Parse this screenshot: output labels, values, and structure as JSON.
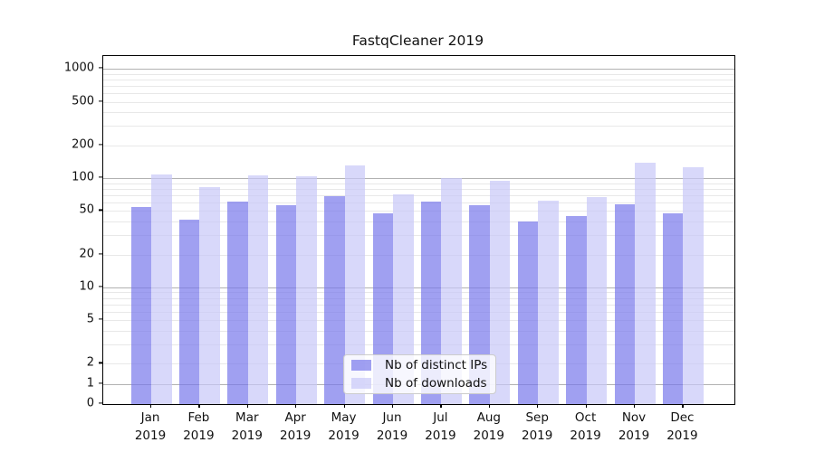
{
  "chart_data": {
    "type": "bar",
    "title": "FastqCleaner 2019",
    "categories": [
      "Jan",
      "Feb",
      "Mar",
      "Apr",
      "May",
      "Jun",
      "Jul",
      "Aug",
      "Sep",
      "Oct",
      "Nov",
      "Dec"
    ],
    "category_second_line": "2019",
    "series": [
      {
        "name": "Nb of distinct IPs",
        "color": "rgba(120,120,235,0.7)",
        "values": [
          54,
          42,
          61,
          56,
          69,
          48,
          61,
          57,
          40,
          45,
          58,
          48
        ]
      },
      {
        "name": "Nb of downloads",
        "color": "rgba(200,200,248,0.7)",
        "values": [
          107,
          82,
          105,
          104,
          131,
          71,
          100,
          94,
          62,
          67,
          138,
          126
        ]
      }
    ],
    "yscale": "symlog",
    "ytick_labels": [
      "0",
      "1",
      "2",
      "5",
      "10",
      "20",
      "50",
      "100",
      "200",
      "500",
      "1000"
    ],
    "ytick_values": [
      0,
      1,
      2,
      5,
      10,
      20,
      50,
      100,
      200,
      500,
      1000
    ],
    "ylim": [
      0,
      1500
    ],
    "grid": true,
    "legend_position": "lower-center"
  },
  "colors": {
    "bar_ips": "rgba(120,120,235,0.7)",
    "bar_downloads": "rgba(200,200,248,0.7)",
    "major_grid": "#b2b2b2",
    "minor_grid": "#e8e8e8",
    "axis": "#000000",
    "background": "#ffffff"
  }
}
